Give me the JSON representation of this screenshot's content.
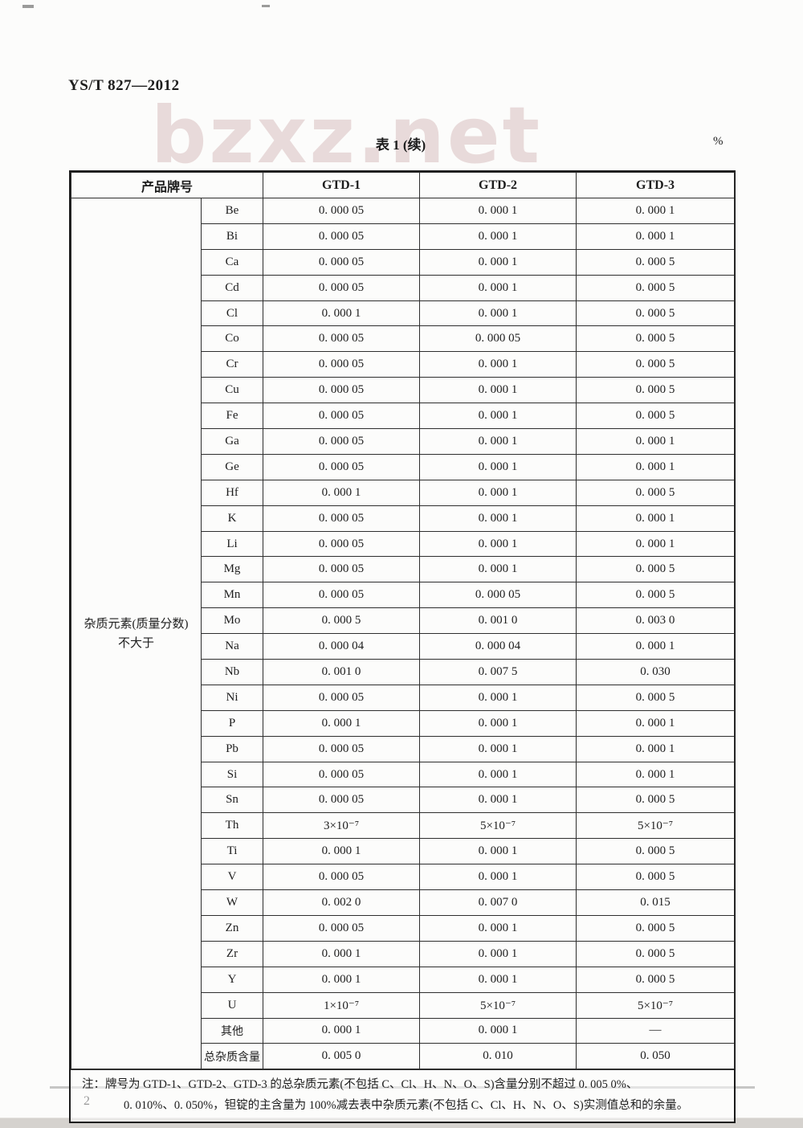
{
  "page": {
    "standard_no": "YS/T 827—2012",
    "table_caption": "表 1 (续)",
    "unit": "%",
    "watermark": "bzxz.net",
    "page_number": "2"
  },
  "table": {
    "header": {
      "product_label": "产品牌号",
      "grades": [
        "GTD-1",
        "GTD-2",
        "GTD-3"
      ]
    },
    "group_label_line1": "杂质元素(质量分数)",
    "group_label_line2": "不大于",
    "rows": [
      {
        "element": "Be",
        "values": [
          "0. 000 05",
          "0. 000 1",
          "0. 000 1"
        ]
      },
      {
        "element": "Bi",
        "values": [
          "0. 000 05",
          "0. 000 1",
          "0. 000 1"
        ]
      },
      {
        "element": "Ca",
        "values": [
          "0. 000 05",
          "0. 000 1",
          "0. 000 5"
        ]
      },
      {
        "element": "Cd",
        "values": [
          "0. 000 05",
          "0. 000 1",
          "0. 000 5"
        ]
      },
      {
        "element": "Cl",
        "values": [
          "0. 000 1",
          "0. 000 1",
          "0. 000 5"
        ]
      },
      {
        "element": "Co",
        "values": [
          "0. 000 05",
          "0. 000 05",
          "0. 000 5"
        ]
      },
      {
        "element": "Cr",
        "values": [
          "0. 000 05",
          "0. 000 1",
          "0. 000 5"
        ]
      },
      {
        "element": "Cu",
        "values": [
          "0. 000 05",
          "0. 000 1",
          "0. 000 5"
        ]
      },
      {
        "element": "Fe",
        "values": [
          "0. 000 05",
          "0. 000 1",
          "0. 000 5"
        ]
      },
      {
        "element": "Ga",
        "values": [
          "0. 000 05",
          "0. 000 1",
          "0. 000 1"
        ]
      },
      {
        "element": "Ge",
        "values": [
          "0. 000 05",
          "0. 000 1",
          "0. 000 1"
        ]
      },
      {
        "element": "Hf",
        "values": [
          "0. 000 1",
          "0. 000 1",
          "0. 000 5"
        ]
      },
      {
        "element": "K",
        "values": [
          "0. 000 05",
          "0. 000 1",
          "0. 000 1"
        ]
      },
      {
        "element": "Li",
        "values": [
          "0. 000 05",
          "0. 000 1",
          "0. 000 1"
        ]
      },
      {
        "element": "Mg",
        "values": [
          "0. 000 05",
          "0. 000 1",
          "0. 000 5"
        ]
      },
      {
        "element": "Mn",
        "values": [
          "0. 000 05",
          "0. 000 05",
          "0. 000 5"
        ]
      },
      {
        "element": "Mo",
        "values": [
          "0. 000 5",
          "0. 001 0",
          "0. 003 0"
        ]
      },
      {
        "element": "Na",
        "values": [
          "0. 000 04",
          "0. 000 04",
          "0. 000 1"
        ]
      },
      {
        "element": "Nb",
        "values": [
          "0. 001 0",
          "0. 007 5",
          "0. 030"
        ]
      },
      {
        "element": "Ni",
        "values": [
          "0. 000 05",
          "0. 000 1",
          "0. 000 5"
        ]
      },
      {
        "element": "P",
        "values": [
          "0. 000 1",
          "0. 000 1",
          "0. 000 1"
        ]
      },
      {
        "element": "Pb",
        "values": [
          "0. 000 05",
          "0. 000 1",
          "0. 000 1"
        ]
      },
      {
        "element": "Si",
        "values": [
          "0. 000 05",
          "0. 000 1",
          "0. 000 1"
        ]
      },
      {
        "element": "Sn",
        "values": [
          "0. 000 05",
          "0. 000 1",
          "0. 000 5"
        ]
      },
      {
        "element": "Th",
        "values": [
          "3×10⁻⁷",
          "5×10⁻⁷",
          "5×10⁻⁷"
        ]
      },
      {
        "element": "Ti",
        "values": [
          "0. 000 1",
          "0. 000 1",
          "0. 000 5"
        ]
      },
      {
        "element": "V",
        "values": [
          "0. 000 05",
          "0. 000 1",
          "0. 000 5"
        ]
      },
      {
        "element": "W",
        "values": [
          "0. 002 0",
          "0. 007 0",
          "0. 015"
        ]
      },
      {
        "element": "Zn",
        "values": [
          "0. 000 05",
          "0. 000 1",
          "0. 000 5"
        ]
      },
      {
        "element": "Zr",
        "values": [
          "0. 000 1",
          "0. 000 1",
          "0. 000 5"
        ]
      },
      {
        "element": "Y",
        "values": [
          "0. 000 1",
          "0. 000 1",
          "0. 000 5"
        ]
      },
      {
        "element": "U",
        "values": [
          "1×10⁻⁷",
          "5×10⁻⁷",
          "5×10⁻⁷"
        ]
      },
      {
        "element": "其他",
        "values": [
          "0. 000 1",
          "0. 000 1",
          "—"
        ]
      },
      {
        "element": "总杂质含量",
        "values": [
          "0. 005 0",
          "0. 010",
          "0. 050"
        ]
      }
    ]
  },
  "note": {
    "line1": "注：牌号为 GTD-1、GTD-2、GTD-3 的总杂质元素(不包括 C、Cl、H、N、O、S)含量分别不超过 0. 005 0%、",
    "line2": "0. 010%、0. 050%，钽锭的主含量为 100%减去表中杂质元素(不包括 C、Cl、H、N、O、S)实测值总和的余量。"
  }
}
